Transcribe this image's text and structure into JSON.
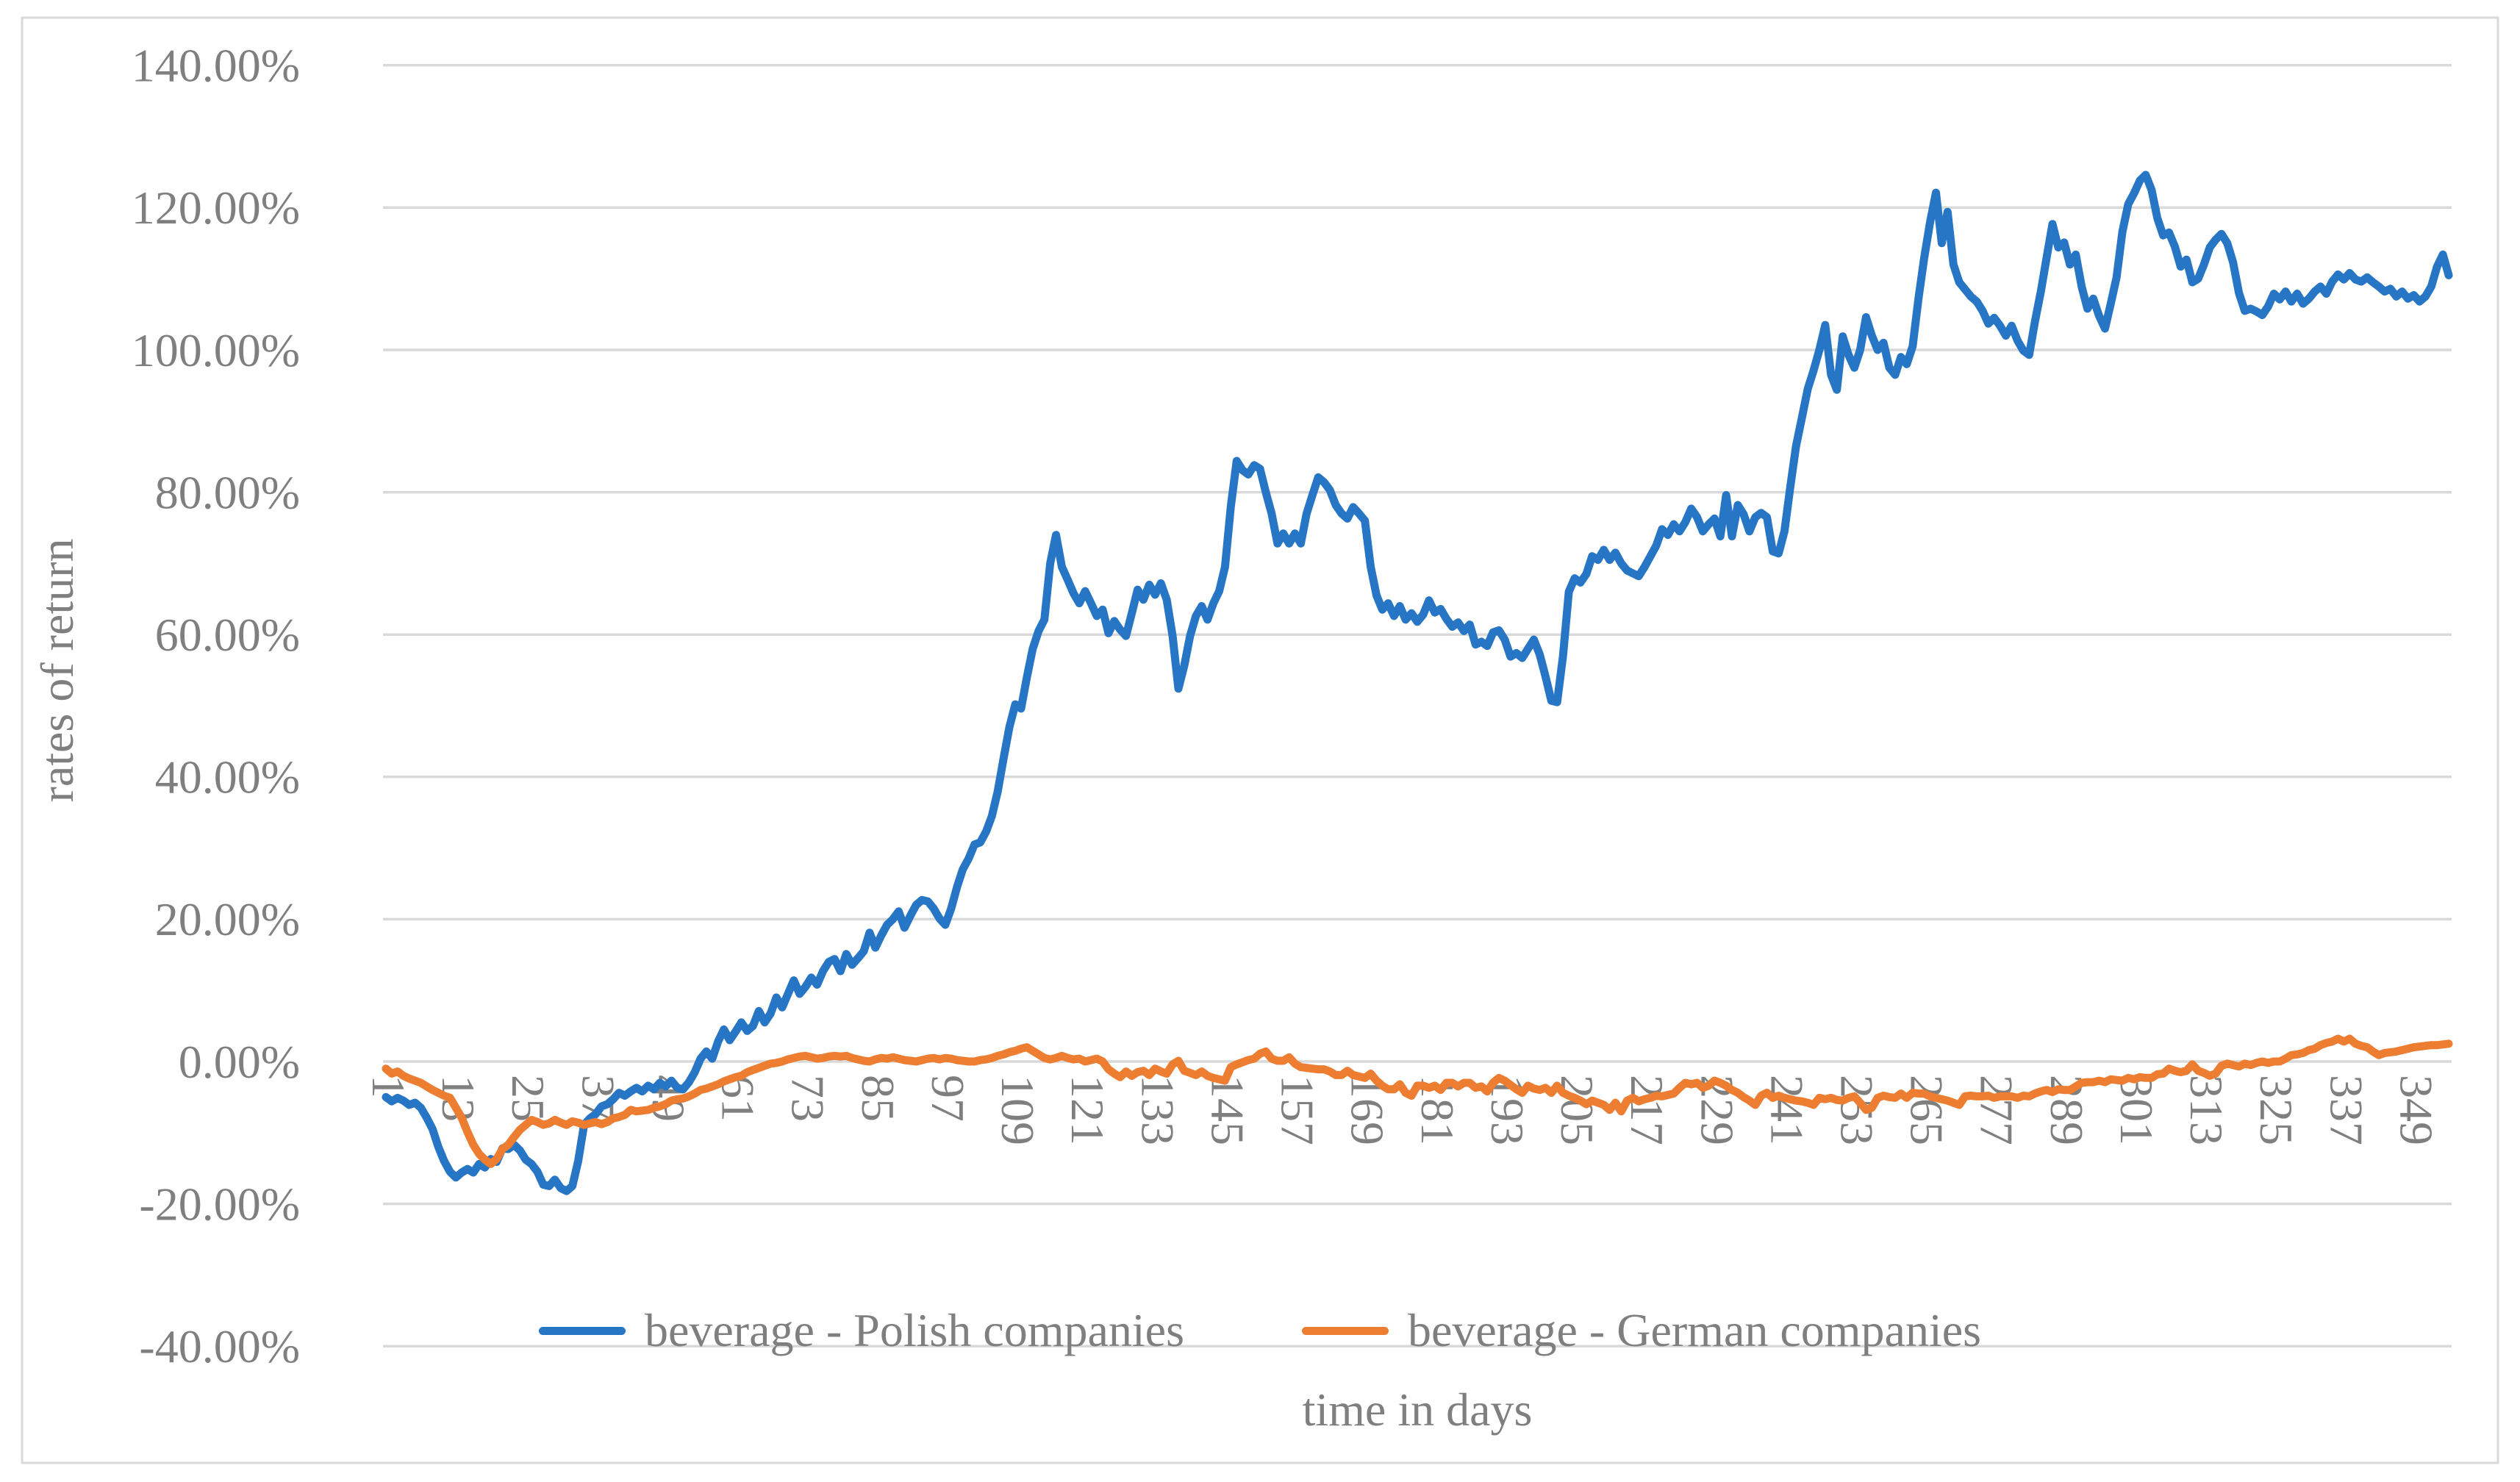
{
  "chart_data": {
    "type": "line",
    "title": "",
    "xlabel": "time in days",
    "ylabel": "rates of return",
    "x_range": [
      1,
      355
    ],
    "ylim": [
      -40,
      140
    ],
    "grid": true,
    "legend_position": "bottom",
    "y_ticks": [
      {
        "value": 140,
        "label": "140.00%"
      },
      {
        "value": 120,
        "label": "120.00%"
      },
      {
        "value": 100,
        "label": "100.00%"
      },
      {
        "value": 80,
        "label": "80.00%"
      },
      {
        "value": 60,
        "label": "60.00%"
      },
      {
        "value": 40,
        "label": "40.00%"
      },
      {
        "value": 20,
        "label": "20.00%"
      },
      {
        "value": 0,
        "label": "0.00%"
      },
      {
        "value": -20,
        "label": "-20.00%"
      },
      {
        "value": -40,
        "label": "-40.00%"
      }
    ],
    "x_tick_labels": [
      "1",
      "13",
      "25",
      "37",
      "49",
      "61",
      "73",
      "85",
      "97",
      "109",
      "121",
      "133",
      "145",
      "157",
      "169",
      "181",
      "193",
      "205",
      "217",
      "229",
      "241",
      "253",
      "265",
      "277",
      "289",
      "301",
      "313",
      "325",
      "337",
      "349"
    ],
    "series": [
      {
        "name": "beverage - Polish companies",
        "color": "#2776C6",
        "values": [
          -5.0,
          -5.6,
          -5.1,
          -5.5,
          -6.1,
          -5.8,
          -6.5,
          -7.9,
          -9.5,
          -12.0,
          -14.0,
          -15.5,
          -16.3,
          -15.6,
          -15.1,
          -15.6,
          -14.4,
          -14.9,
          -13.7,
          -14.1,
          -12.2,
          -12.3,
          -11.7,
          -12.5,
          -13.8,
          -14.4,
          -15.5,
          -17.3,
          -17.5,
          -16.6,
          -17.8,
          -18.2,
          -17.5,
          -14.0,
          -8.9,
          -8.0,
          -7.4,
          -6.3,
          -6.0,
          -5.3,
          -4.4,
          -4.8,
          -4.2,
          -3.7,
          -4.2,
          -3.4,
          -3.9,
          -3.0,
          -3.5,
          -2.7,
          -3.7,
          -3.9,
          -2.9,
          -1.5,
          0.4,
          1.4,
          0.4,
          2.8,
          4.5,
          3.0,
          4.2,
          5.5,
          4.3,
          5.0,
          7.1,
          5.5,
          6.7,
          9.0,
          7.6,
          9.5,
          11.4,
          9.5,
          10.5,
          11.8,
          10.8,
          12.7,
          14.0,
          14.4,
          12.7,
          15.1,
          13.6,
          14.5,
          15.5,
          18.1,
          16.0,
          17.7,
          19.2,
          20.0,
          21.1,
          18.8,
          20.5,
          22.0,
          22.7,
          22.5,
          21.5,
          20.1,
          19.2,
          21.5,
          24.5,
          27.0,
          28.5,
          30.5,
          30.8,
          32.3,
          34.5,
          38.0,
          42.6,
          47.0,
          50.2,
          49.6,
          54.0,
          58.0,
          60.5,
          62.1,
          70.0,
          74.0,
          69.5,
          67.7,
          65.8,
          64.4,
          66.1,
          64.4,
          62.6,
          63.5,
          60.2,
          61.9,
          60.7,
          59.8,
          63.0,
          66.3,
          64.9,
          67.0,
          65.6,
          67.2,
          64.9,
          59.8,
          52.4,
          55.6,
          59.8,
          62.6,
          64.0,
          62.1,
          64.4,
          66.1,
          69.5,
          78.0,
          84.4,
          83.1,
          82.5,
          83.8,
          83.3,
          80.0,
          77.0,
          72.8,
          74.2,
          72.8,
          74.2,
          72.8,
          77.0,
          79.6,
          82.1,
          81.4,
          80.3,
          78.2,
          77.0,
          76.3,
          77.9,
          77.0,
          76.0,
          69.5,
          65.5,
          63.5,
          64.4,
          62.6,
          64.0,
          62.1,
          63.0,
          61.8,
          62.8,
          64.8,
          63.1,
          63.6,
          62.2,
          61.1,
          61.7,
          60.5,
          61.4,
          58.6,
          59.0,
          58.4,
          60.3,
          60.6,
          59.3,
          56.9,
          57.4,
          56.7,
          58.0,
          59.3,
          57.2,
          54.1,
          50.7,
          50.5,
          57.0,
          66.0,
          67.9,
          67.3,
          68.5,
          71.0,
          70.5,
          71.9,
          70.5,
          71.5,
          70.0,
          69.0,
          68.6,
          68.2,
          69.5,
          71.0,
          72.5,
          74.8,
          74.0,
          75.5,
          74.5,
          75.8,
          77.7,
          76.5,
          74.5,
          75.5,
          76.3,
          73.8,
          79.6,
          73.8,
          78.2,
          76.9,
          74.5,
          76.5,
          77.1,
          76.5,
          71.7,
          71.4,
          74.5,
          80.7,
          86.5,
          90.5,
          94.5,
          97.1,
          100.0,
          103.5,
          96.5,
          94.4,
          101.9,
          99.3,
          97.5,
          100.0,
          104.6,
          102.0,
          100.0,
          101.0,
          97.5,
          96.5,
          99.0,
          98.0,
          100.5,
          107.2,
          113.0,
          118.0,
          122.1,
          115.0,
          119.4,
          112.0,
          109.5,
          108.5,
          107.5,
          106.8,
          105.5,
          103.7,
          104.5,
          103.4,
          102.0,
          103.4,
          101.3,
          99.9,
          99.3,
          104.0,
          108.2,
          113.0,
          117.7,
          114.4,
          115.1,
          112.0,
          113.4,
          108.9,
          105.8,
          107.2,
          104.8,
          103.0,
          106.5,
          110.2,
          116.6,
          120.5,
          122.0,
          123.8,
          124.6,
          122.5,
          118.5,
          116.1,
          116.5,
          114.5,
          111.7,
          112.7,
          109.5,
          110.0,
          112.0,
          114.4,
          115.5,
          116.3,
          115.0,
          112.3,
          108.0,
          105.5,
          105.8,
          105.4,
          104.9,
          106.1,
          107.9,
          107.1,
          108.2,
          106.8,
          107.9,
          106.5,
          107.2,
          108.2,
          108.9,
          107.9,
          109.6,
          110.6,
          109.9,
          110.8,
          109.9,
          109.6,
          110.2,
          109.5,
          108.9,
          108.2,
          108.6,
          107.5,
          108.2,
          107.2,
          107.7,
          106.8,
          107.5,
          108.9,
          111.7,
          113.4,
          110.5
        ]
      },
      {
        "name": "beverage - German companies",
        "color": "#ED7D31",
        "values": [
          -1.0,
          -1.7,
          -1.4,
          -2.0,
          -2.4,
          -2.7,
          -3.0,
          -3.5,
          -4.0,
          -4.4,
          -4.8,
          -5.1,
          -6.5,
          -7.9,
          -9.9,
          -11.7,
          -13.0,
          -13.8,
          -14.4,
          -13.7,
          -12.3,
          -11.7,
          -10.6,
          -9.6,
          -8.9,
          -8.2,
          -8.5,
          -8.9,
          -8.7,
          -8.2,
          -8.6,
          -8.9,
          -8.4,
          -8.6,
          -8.9,
          -8.7,
          -8.5,
          -8.8,
          -8.5,
          -8.0,
          -7.8,
          -7.5,
          -6.8,
          -7.0,
          -6.9,
          -6.8,
          -6.5,
          -6.3,
          -6.0,
          -5.5,
          -5.3,
          -5.2,
          -4.9,
          -4.5,
          -4.0,
          -3.8,
          -3.5,
          -3.2,
          -2.8,
          -2.5,
          -2.2,
          -2.0,
          -1.5,
          -1.2,
          -0.9,
          -0.6,
          -0.3,
          -0.2,
          0.0,
          0.3,
          0.5,
          0.7,
          0.8,
          0.6,
          0.4,
          0.5,
          0.7,
          0.8,
          0.7,
          0.8,
          0.5,
          0.3,
          0.1,
          0.0,
          0.3,
          0.5,
          0.4,
          0.6,
          0.4,
          0.2,
          0.1,
          0.0,
          0.2,
          0.4,
          0.5,
          0.3,
          0.5,
          0.4,
          0.2,
          0.1,
          0.0,
          0.0,
          0.2,
          0.3,
          0.5,
          0.8,
          1.0,
          1.3,
          1.5,
          1.8,
          2.0,
          1.5,
          1.0,
          0.5,
          0.3,
          0.5,
          0.8,
          0.5,
          0.3,
          0.4,
          0.0,
          0.2,
          0.4,
          0.0,
          -1.1,
          -1.7,
          -2.2,
          -1.4,
          -2.0,
          -1.5,
          -1.3,
          -1.9,
          -1.0,
          -1.4,
          -1.7,
          -0.4,
          0.1,
          -1.3,
          -1.6,
          -1.9,
          -1.4,
          -2.0,
          -2.3,
          -2.5,
          -2.7,
          -0.8,
          -0.4,
          -0.1,
          0.2,
          0.4,
          1.1,
          1.4,
          0.4,
          0.1,
          0.1,
          0.6,
          -0.3,
          -0.8,
          -0.9,
          -1.0,
          -1.1,
          -1.1,
          -1.4,
          -1.9,
          -1.9,
          -1.3,
          -1.9,
          -2.1,
          -2.3,
          -1.7,
          -2.7,
          -3.4,
          -3.9,
          -3.9,
          -3.2,
          -4.4,
          -4.8,
          -3.4,
          -3.4,
          -3.7,
          -3.4,
          -4.0,
          -3.0,
          -3.0,
          -3.5,
          -3.0,
          -3.0,
          -3.7,
          -3.5,
          -4.2,
          -3.0,
          -2.3,
          -2.7,
          -3.3,
          -3.9,
          -4.4,
          -3.4,
          -3.8,
          -4.0,
          -3.7,
          -4.4,
          -3.4,
          -4.4,
          -4.8,
          -5.1,
          -5.5,
          -6.0,
          -5.5,
          -5.8,
          -6.1,
          -6.8,
          -5.8,
          -7.0,
          -5.5,
          -5.1,
          -5.6,
          -5.3,
          -5.1,
          -4.8,
          -4.9,
          -4.7,
          -4.5,
          -3.7,
          -3.0,
          -3.2,
          -3.0,
          -3.7,
          -3.4,
          -2.7,
          -3.0,
          -3.4,
          -4.0,
          -4.4,
          -5.0,
          -5.5,
          -6.1,
          -4.8,
          -4.4,
          -5.1,
          -4.8,
          -5.1,
          -5.3,
          -5.5,
          -5.6,
          -5.8,
          -6.1,
          -5.1,
          -5.3,
          -5.1,
          -5.4,
          -5.5,
          -5.1,
          -4.9,
          -5.8,
          -6.8,
          -6.5,
          -5.1,
          -4.8,
          -5.0,
          -5.1,
          -4.5,
          -5.1,
          -4.4,
          -4.5,
          -4.5,
          -4.9,
          -5.1,
          -5.3,
          -5.5,
          -5.8,
          -6.1,
          -4.9,
          -4.8,
          -4.9,
          -4.9,
          -4.8,
          -5.1,
          -4.9,
          -4.9,
          -4.9,
          -5.1,
          -4.8,
          -4.9,
          -4.5,
          -4.2,
          -4.0,
          -4.3,
          -3.9,
          -4.0,
          -4.0,
          -3.5,
          -3.0,
          -2.9,
          -2.9,
          -2.7,
          -2.9,
          -2.5,
          -2.6,
          -2.7,
          -2.3,
          -2.5,
          -2.2,
          -2.3,
          -2.3,
          -1.8,
          -1.7,
          -1.0,
          -1.3,
          -1.5,
          -1.3,
          -0.4,
          -1.3,
          -1.6,
          -2.0,
          -1.7,
          -0.6,
          -0.3,
          -0.5,
          -0.7,
          -0.3,
          -0.5,
          -0.2,
          0.0,
          -0.2,
          0.0,
          0.0,
          0.4,
          0.9,
          1.0,
          1.2,
          1.6,
          1.8,
          2.3,
          2.6,
          2.8,
          3.2,
          2.8,
          3.2,
          2.5,
          2.2,
          2.0,
          1.4,
          0.9,
          1.2,
          1.3,
          1.4,
          1.6,
          1.8,
          2.0,
          2.1,
          2.2,
          2.3,
          2.3,
          2.4,
          2.5
        ]
      }
    ],
    "colors": {
      "gridline": "#d9d9d9",
      "frame": "#d9d9d9",
      "tick_text": "#7f7f7f",
      "background": "#ffffff"
    }
  }
}
